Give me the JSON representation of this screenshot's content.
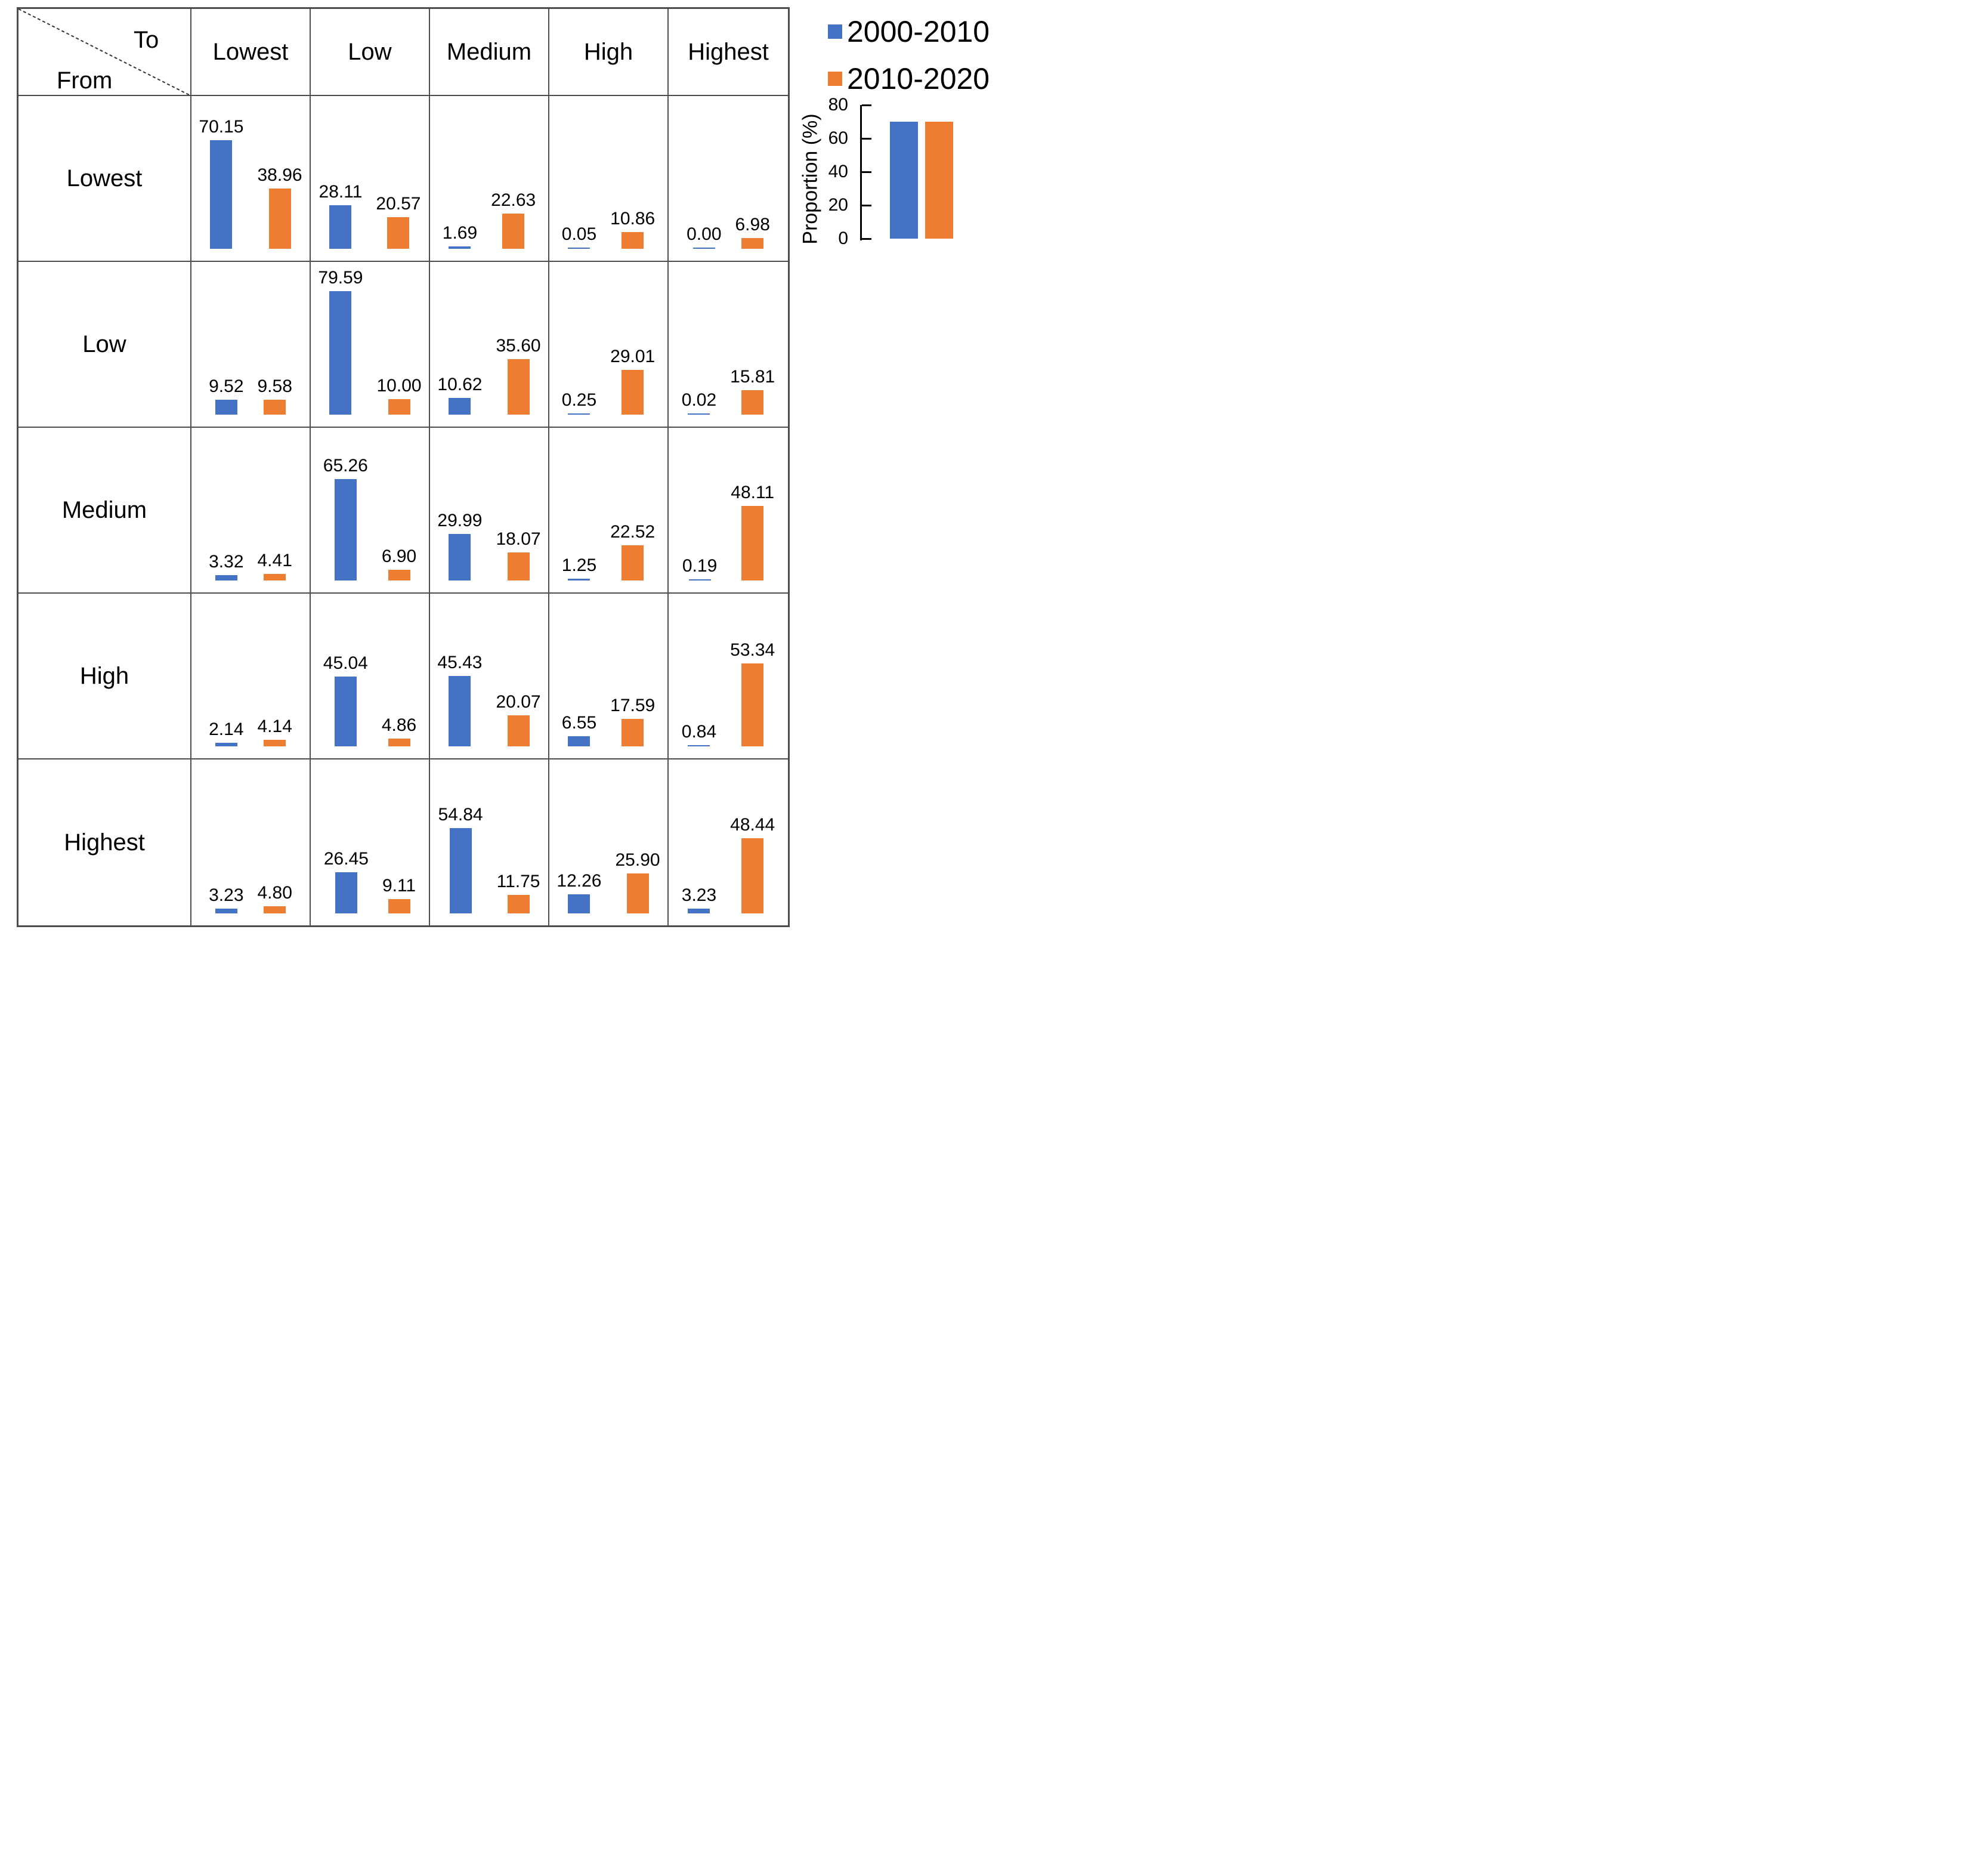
{
  "corner": {
    "to_label": "To",
    "from_label": "From"
  },
  "legend": {
    "items": [
      {
        "label": "2000-2010",
        "color": "#4472C4"
      },
      {
        "label": "2010-2020",
        "color": "#ED7D31"
      }
    ]
  },
  "scale_chart": {
    "axis_label": "Proportion (%)",
    "ticks": [
      80,
      60,
      40,
      20,
      0
    ],
    "max": 80,
    "bars": [
      70,
      70
    ]
  },
  "colors": {
    "series1": "#4472C4",
    "series2": "#ED7D31",
    "grid_line": "#4d4d4d"
  },
  "chart_data": {
    "type": "bar",
    "series": [
      "2000-2010",
      "2010-2020"
    ],
    "columns": [
      "Lowest",
      "Low",
      "Medium",
      "High",
      "Highest"
    ],
    "rows": [
      "Lowest",
      "Low",
      "Medium",
      "High",
      "Highest"
    ],
    "ylabel": "Proportion (%)",
    "ylim": [
      0,
      80
    ],
    "matrix": [
      {
        "from": "Lowest",
        "cells": [
          [
            70.15,
            38.96
          ],
          [
            28.11,
            20.57
          ],
          [
            1.69,
            22.63
          ],
          [
            0.05,
            10.86
          ],
          [
            0.0,
            6.98
          ]
        ]
      },
      {
        "from": "Low",
        "cells": [
          [
            9.52,
            9.58
          ],
          [
            79.59,
            10.0
          ],
          [
            10.62,
            35.6
          ],
          [
            0.25,
            29.01
          ],
          [
            0.02,
            15.81
          ]
        ]
      },
      {
        "from": "Medium",
        "cells": [
          [
            3.32,
            4.41
          ],
          [
            65.26,
            6.9
          ],
          [
            29.99,
            18.07
          ],
          [
            1.25,
            22.52
          ],
          [
            0.19,
            48.11
          ]
        ]
      },
      {
        "from": "High",
        "cells": [
          [
            2.14,
            4.14
          ],
          [
            45.04,
            4.86
          ],
          [
            45.43,
            20.07
          ],
          [
            6.55,
            17.59
          ],
          [
            0.84,
            53.34
          ]
        ]
      },
      {
        "from": "Highest",
        "cells": [
          [
            3.23,
            4.8
          ],
          [
            26.45,
            9.11
          ],
          [
            54.84,
            11.75
          ],
          [
            12.26,
            25.9
          ],
          [
            3.23,
            48.44
          ]
        ]
      }
    ]
  }
}
